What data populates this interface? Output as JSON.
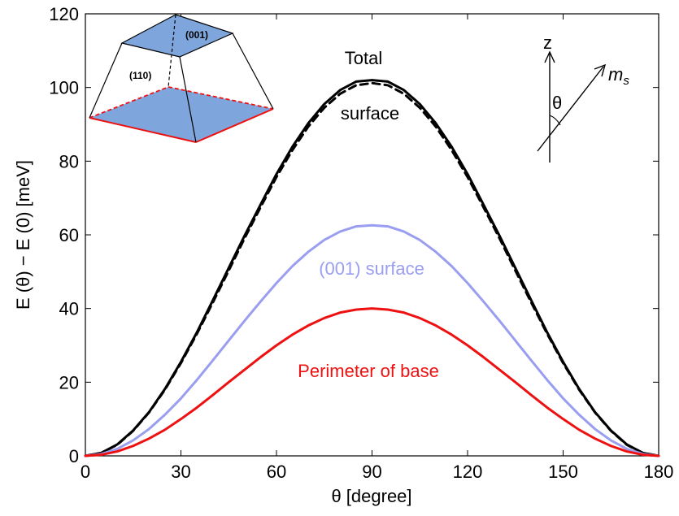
{
  "chart_data": {
    "type": "line",
    "xlabel": "θ [degree]",
    "ylabel": "E (θ) − E (0) [meV]",
    "xlim": [
      0,
      180
    ],
    "ylim": [
      0,
      120
    ],
    "xticks": [
      0,
      30,
      60,
      90,
      120,
      150,
      180
    ],
    "yticks": [
      0,
      20,
      40,
      60,
      80,
      100,
      120
    ],
    "grid": false,
    "x": [
      0,
      5,
      10,
      15,
      20,
      25,
      30,
      35,
      40,
      45,
      50,
      55,
      60,
      65,
      70,
      75,
      80,
      85,
      90,
      95,
      100,
      105,
      110,
      115,
      120,
      125,
      130,
      135,
      140,
      145,
      150,
      155,
      160,
      165,
      170,
      175,
      180
    ],
    "series": [
      {
        "color": "#000000",
        "dash": "solid",
        "values": [
          0,
          0.8,
          3.1,
          6.9,
          11.9,
          18.2,
          25.5,
          33.5,
          42.2,
          51.0,
          59.8,
          68.2,
          76.5,
          83.9,
          90.3,
          95.5,
          99.3,
          101.6,
          102.0,
          101.6,
          99.3,
          95.5,
          90.3,
          83.9,
          76.5,
          68.2,
          59.8,
          51.0,
          42.2,
          33.5,
          25.5,
          18.2,
          11.9,
          6.9,
          3.1,
          0.8,
          0
        ]
      },
      {
        "color": "#000000",
        "dash": "dashed",
        "values": [
          0,
          0.8,
          3.0,
          6.8,
          11.8,
          18.0,
          25.2,
          33.1,
          41.6,
          50.3,
          59.1,
          67.5,
          75.7,
          83.0,
          89.4,
          94.5,
          98.3,
          100.6,
          101.2,
          100.6,
          98.3,
          94.5,
          89.4,
          83.0,
          75.7,
          67.5,
          59.1,
          50.3,
          41.6,
          33.1,
          25.2,
          18.0,
          11.8,
          6.8,
          3.0,
          0.8,
          0
        ]
      },
      {
        "color": "#9a9ef0",
        "dash": "solid",
        "values": [
          0,
          0.5,
          1.9,
          4.2,
          7.3,
          11.2,
          15.6,
          20.6,
          25.9,
          31.3,
          36.7,
          41.9,
          46.9,
          51.5,
          55.4,
          58.6,
          60.9,
          62.3,
          62.6,
          62.3,
          60.9,
          58.6,
          55.4,
          51.5,
          46.9,
          41.9,
          36.7,
          31.3,
          25.9,
          20.6,
          15.6,
          11.2,
          7.3,
          4.2,
          1.9,
          0.5,
          0
        ]
      },
      {
        "color": "#ee1111",
        "dash": "solid",
        "values": [
          0,
          0.3,
          1.2,
          2.7,
          4.7,
          7.1,
          10.0,
          13.1,
          16.5,
          20.0,
          23.4,
          26.8,
          30.0,
          32.9,
          35.4,
          37.4,
          38.9,
          39.7,
          40.0,
          39.7,
          38.9,
          37.4,
          35.4,
          32.9,
          30.0,
          26.8,
          23.4,
          20.0,
          16.5,
          13.1,
          10.0,
          7.1,
          4.7,
          2.7,
          1.2,
          0.3,
          0
        ]
      }
    ],
    "annotations": {
      "total": "Total",
      "surface": "surface",
      "s001": "(001) surface",
      "perimeter": "Perimeter of base"
    }
  },
  "inset": {
    "face_top": "(001)",
    "face_side": "(110)",
    "axis_z": "z",
    "vector": "m",
    "vector_sub": "s",
    "angle": "θ",
    "fill_color": "#7ea6dc",
    "edge_color": "#ee1111"
  }
}
